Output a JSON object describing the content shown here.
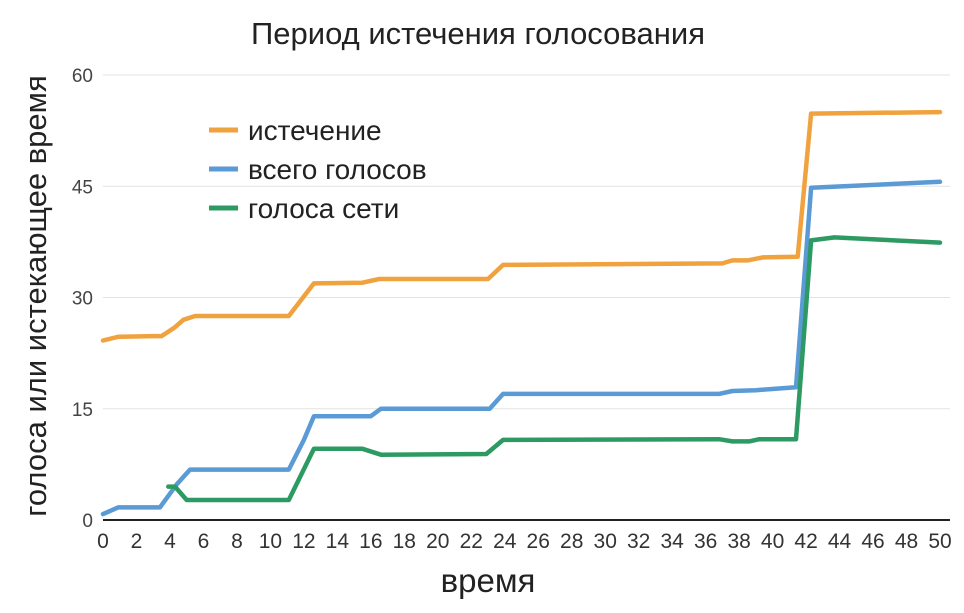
{
  "chart_data": {
    "type": "line",
    "title": "Период истечения голосования",
    "xlabel": "время",
    "ylabel": "голоса или истекающее время",
    "xlim": [
      0,
      50
    ],
    "ylim": [
      0,
      60
    ],
    "x_ticks": [
      0,
      2,
      4,
      6,
      8,
      10,
      12,
      14,
      16,
      18,
      20,
      22,
      24,
      26,
      28,
      30,
      32,
      34,
      36,
      38,
      40,
      42,
      44,
      46,
      48,
      50
    ],
    "y_ticks": [
      0,
      15,
      30,
      45,
      60
    ],
    "grid": "horizontal",
    "legend_position": "top-left",
    "series": [
      {
        "name": "истечение",
        "color": "#f0a23f",
        "points": [
          [
            0,
            24.2
          ],
          [
            0.9,
            24.7
          ],
          [
            3,
            24.8
          ],
          [
            3.5,
            24.8
          ],
          [
            4.3,
            26.0
          ],
          [
            4.8,
            27.0
          ],
          [
            5.5,
            27.5
          ],
          [
            10.6,
            27.5
          ],
          [
            11.1,
            27.5
          ],
          [
            12.6,
            31.9
          ],
          [
            15.5,
            32.0
          ],
          [
            16.5,
            32.5
          ],
          [
            23.0,
            32.5
          ],
          [
            23.9,
            34.4
          ],
          [
            37.0,
            34.6
          ],
          [
            37.6,
            35.0
          ],
          [
            38.5,
            35.0
          ],
          [
            39.4,
            35.4
          ],
          [
            41.5,
            35.5
          ],
          [
            42.3,
            54.8
          ],
          [
            50,
            55.0
          ]
        ]
      },
      {
        "name": "всего голосов",
        "color": "#5b9bd5",
        "points": [
          [
            0,
            0.8
          ],
          [
            0.9,
            1.7
          ],
          [
            3,
            1.7
          ],
          [
            3.4,
            1.7
          ],
          [
            4.4,
            4.8
          ],
          [
            5.2,
            6.8
          ],
          [
            10.6,
            6.8
          ],
          [
            11.1,
            6.8
          ],
          [
            12.0,
            10.8
          ],
          [
            12.6,
            14.0
          ],
          [
            15.2,
            14.0
          ],
          [
            16.0,
            14.0
          ],
          [
            16.6,
            15.0
          ],
          [
            23.1,
            15.0
          ],
          [
            23.9,
            17.0
          ],
          [
            36.8,
            17.0
          ],
          [
            37.6,
            17.4
          ],
          [
            39.0,
            17.5
          ],
          [
            41.4,
            17.9
          ],
          [
            42.3,
            44.8
          ],
          [
            50,
            45.6
          ]
        ]
      },
      {
        "name": "голоса сети",
        "color": "#2e9a63",
        "points": [
          [
            3.9,
            4.5
          ],
          [
            4.3,
            4.5
          ],
          [
            5.0,
            2.7
          ],
          [
            10.6,
            2.7
          ],
          [
            11.1,
            2.7
          ],
          [
            12.6,
            9.6
          ],
          [
            15.5,
            9.6
          ],
          [
            16.6,
            8.8
          ],
          [
            22.9,
            8.9
          ],
          [
            23.9,
            10.8
          ],
          [
            36.8,
            10.9
          ],
          [
            37.6,
            10.6
          ],
          [
            38.6,
            10.6
          ],
          [
            39.2,
            10.9
          ],
          [
            41.4,
            10.9
          ],
          [
            42.3,
            37.7
          ],
          [
            43.7,
            38.1
          ],
          [
            50,
            37.4
          ]
        ]
      }
    ]
  }
}
